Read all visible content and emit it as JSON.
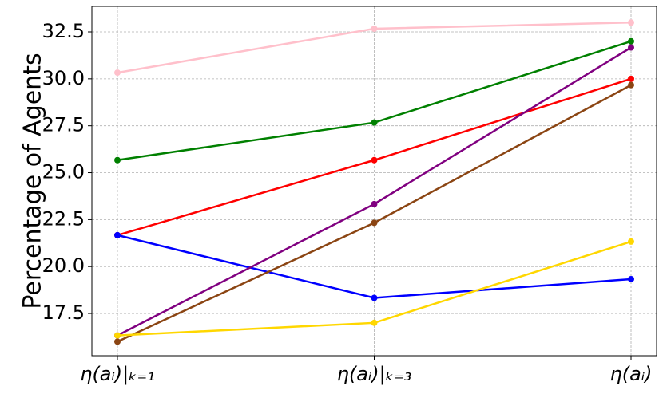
{
  "chart_data": {
    "type": "line",
    "ylabel": "Percentage of Agents",
    "categories": [
      "η(aᵢ)|ₖ₌₁",
      "η(aᵢ)|ₖ₌₃",
      "η(aᵢ)"
    ],
    "series": [
      {
        "color": "#ffc0cb",
        "values": [
          30.33,
          32.67,
          33.0
        ]
      },
      {
        "color": "#008000",
        "values": [
          25.67,
          27.67,
          32.0
        ]
      },
      {
        "color": "#ff0000",
        "values": [
          21.67,
          25.67,
          30.0
        ]
      },
      {
        "color": "#0000ff",
        "values": [
          21.67,
          18.33,
          19.33
        ]
      },
      {
        "color": "#800080",
        "values": [
          16.33,
          23.33,
          31.67
        ]
      },
      {
        "color": "#8b4513",
        "values": [
          16.0,
          22.33,
          29.67
        ]
      },
      {
        "color": "#ffd700",
        "values": [
          16.33,
          17.0,
          21.33
        ]
      }
    ],
    "ylim": [
      15.25,
      33.86
    ],
    "yticks": [
      17.5,
      {
        "value": 20,
        "label": "20.0"
      },
      22.5,
      {
        "value": 25,
        "label": "25.0"
      },
      27.5,
      {
        "value": 30,
        "label": "30.0"
      },
      32.5
    ],
    "grid": true
  }
}
